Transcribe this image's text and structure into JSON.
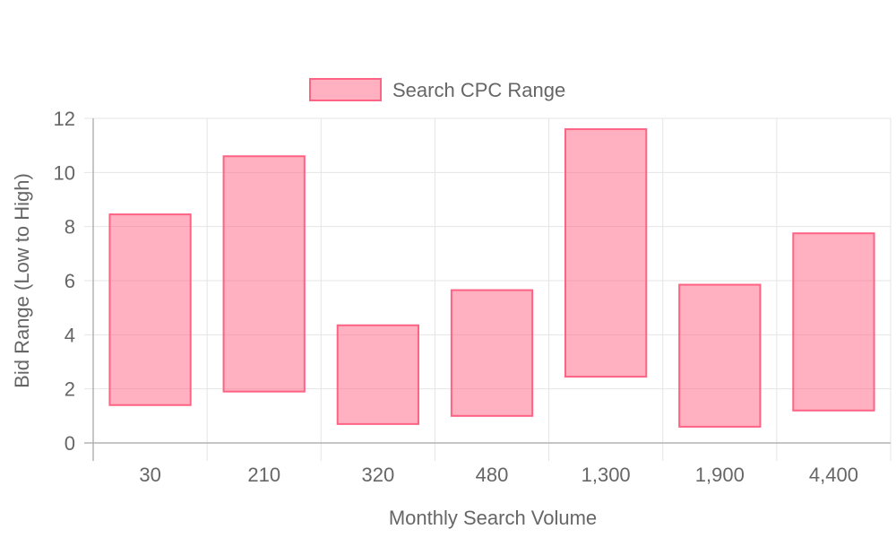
{
  "chart_data": {
    "type": "bar",
    "subtype": "floating-range",
    "categories": [
      "30",
      "210",
      "320",
      "480",
      "1,300",
      "1,900",
      "4,400"
    ],
    "series": [
      {
        "name": "Search CPC Range",
        "ranges": [
          [
            1.4,
            8.45
          ],
          [
            1.9,
            10.6
          ],
          [
            0.7,
            4.35
          ],
          [
            1.0,
            5.65
          ],
          [
            2.45,
            11.6
          ],
          [
            0.6,
            5.85
          ],
          [
            1.2,
            7.75
          ]
        ]
      }
    ],
    "xlabel": "Monthly Search Volume",
    "ylabel": "Bid Range (Low to High)",
    "ylim": [
      0,
      12
    ],
    "yticks": [
      "0",
      "2",
      "4",
      "6",
      "8",
      "10",
      "12"
    ],
    "grid": true,
    "legend": "top-center"
  },
  "colors": {
    "bar_fill": "rgba(255, 99, 132, 0.5)",
    "bar_stroke": "#ff6384",
    "grid": "#e5e5e5",
    "axis": "#b3b3b3",
    "text": "#666666"
  }
}
